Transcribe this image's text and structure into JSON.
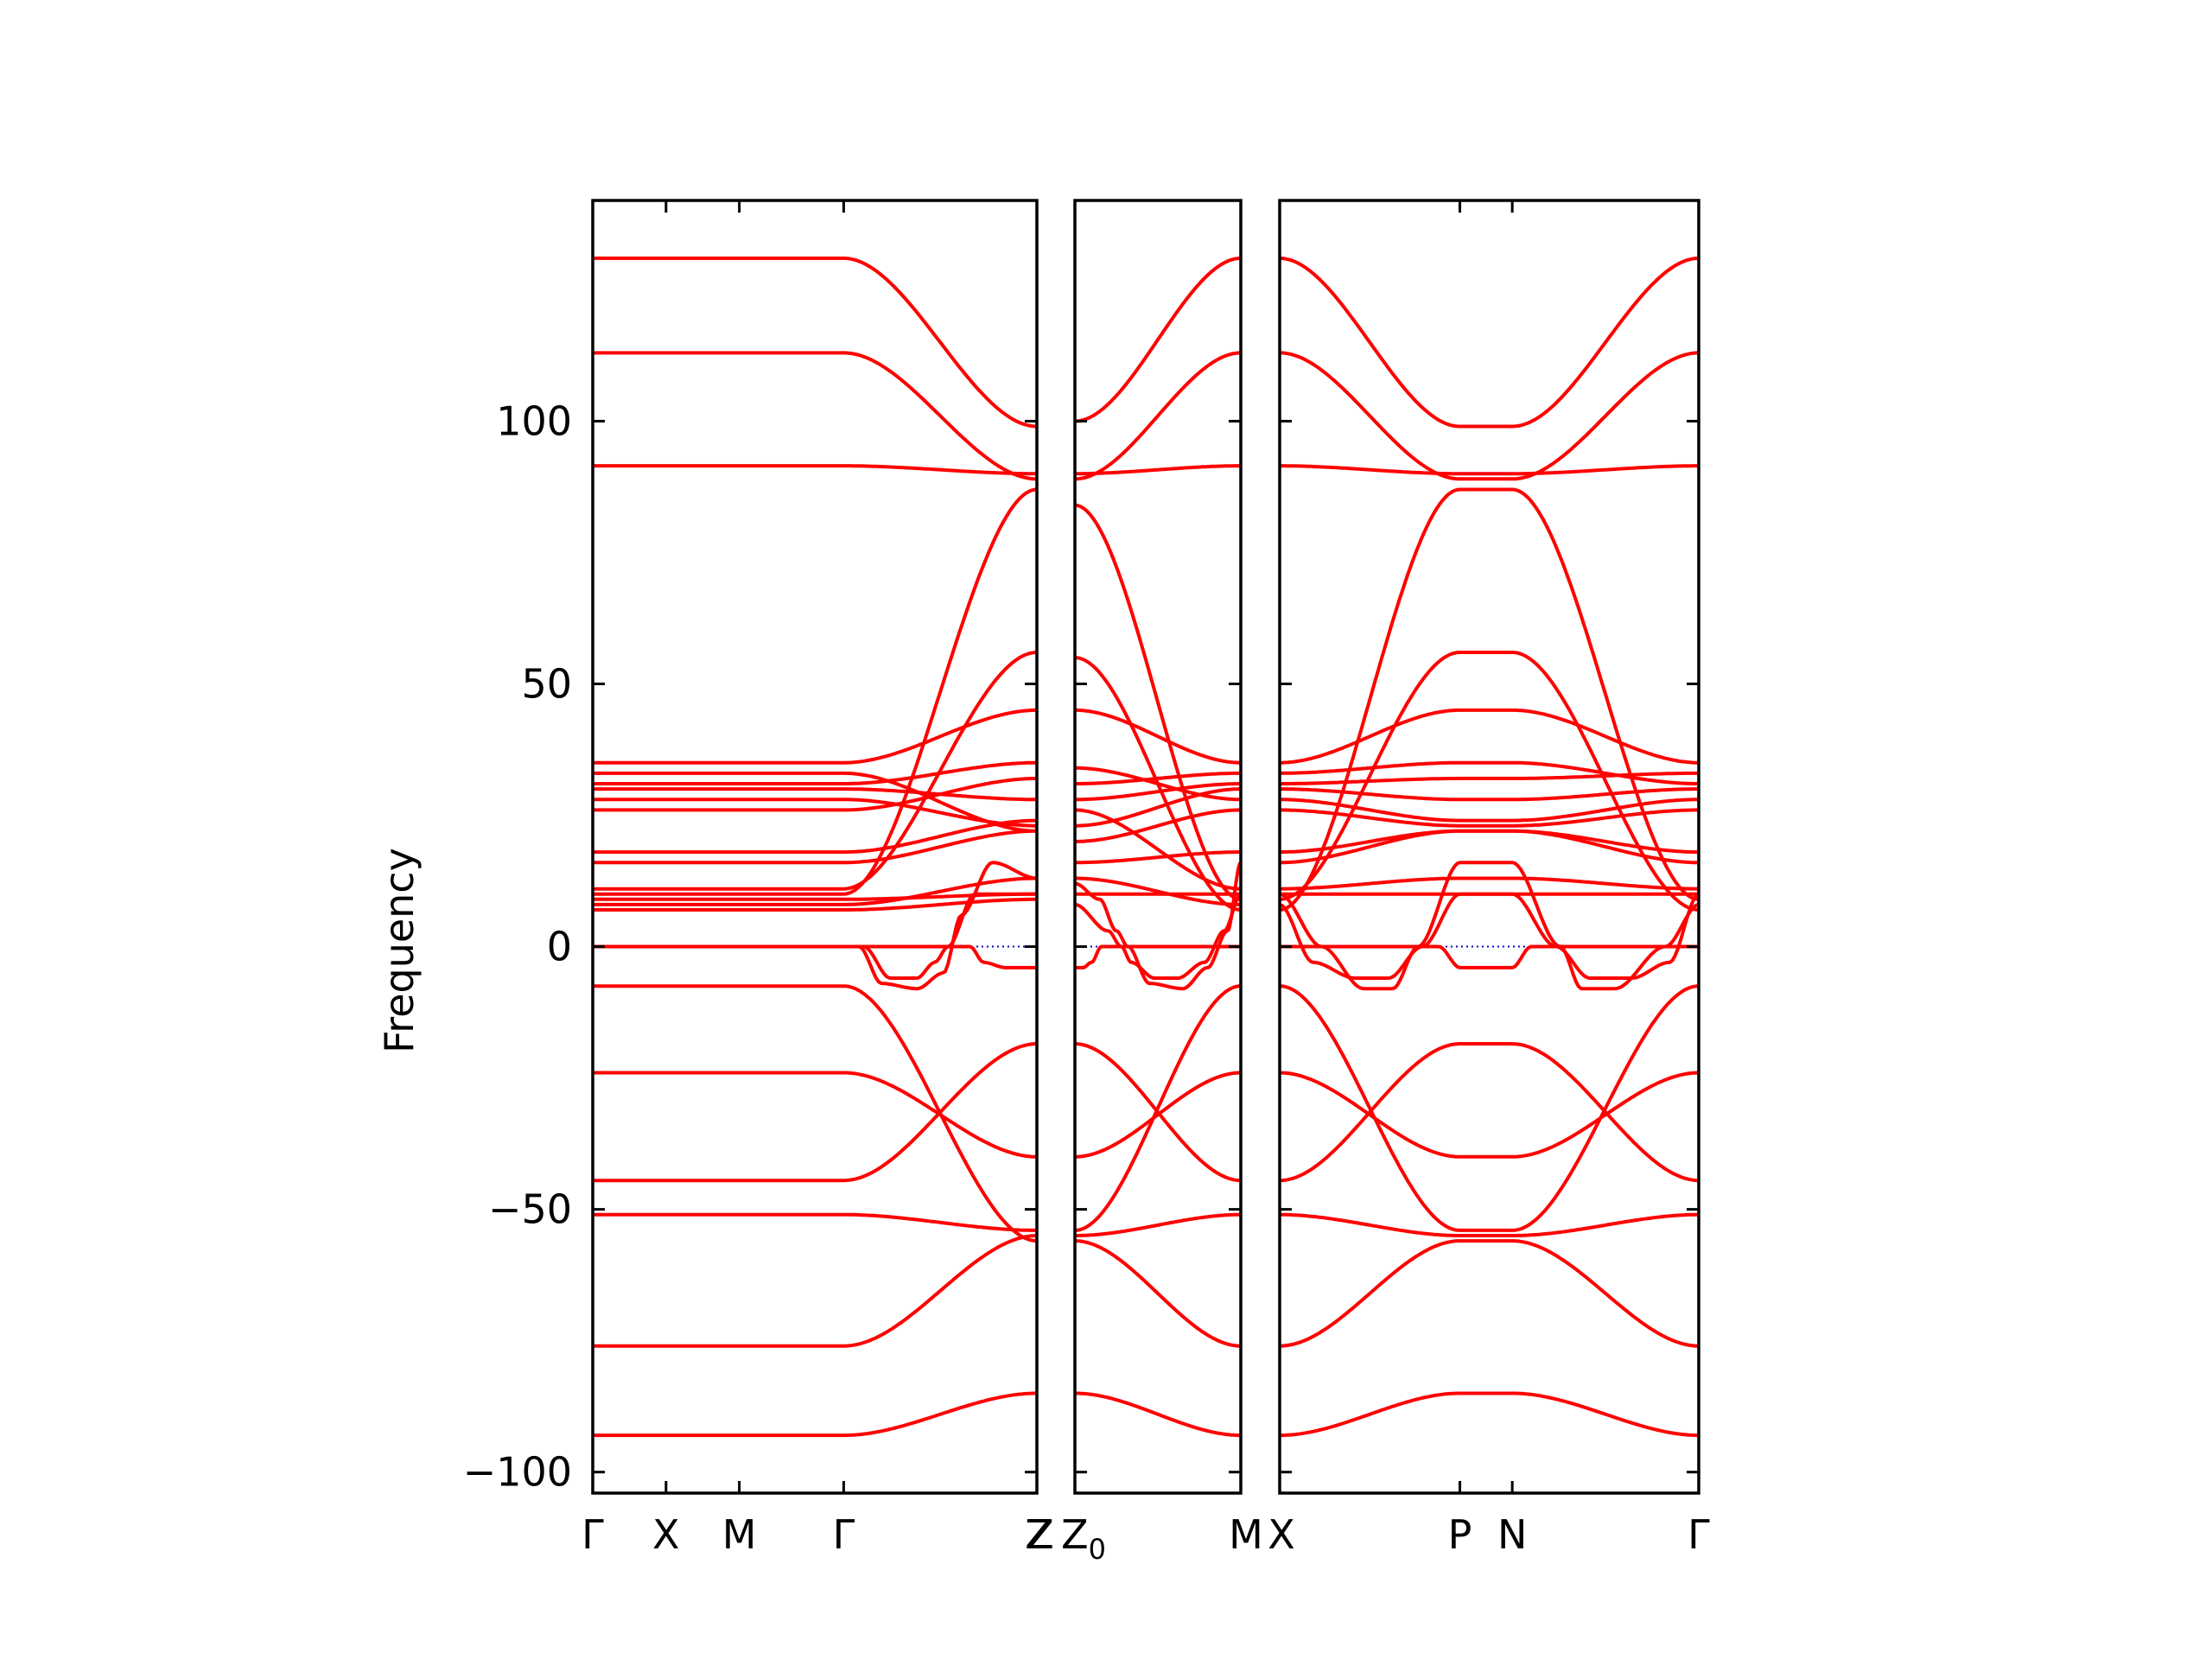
{
  "chart_data": {
    "type": "line",
    "title": "",
    "ylabel": "Frequency",
    "ylim": [
      -104,
      142
    ],
    "y_ticks": [
      {
        "value": 100,
        "label": "100"
      },
      {
        "value": 50,
        "label": "50"
      },
      {
        "value": 0,
        "label": "0"
      },
      {
        "value": -50,
        "label": "−50"
      },
      {
        "value": -100,
        "label": "−100"
      }
    ],
    "grid": false,
    "colors": {
      "bands": "#ff0000",
      "zero_line": "#0000cc",
      "axes": "#000000"
    },
    "panels": [
      {
        "path": [
          {
            "label": "Γ",
            "pos": 0.0
          },
          {
            "label": "X",
            "pos": 0.165
          },
          {
            "label": "M",
            "pos": 0.33
          },
          {
            "label": "Γ",
            "pos": 0.565
          },
          {
            "label": "Z",
            "pos": 1.0
          }
        ],
        "bands": [
          {
            "keys": [
              0,
              0.565,
              1.0
            ],
            "values": [
              131,
              131,
              99
            ]
          },
          {
            "keys": [
              0,
              0.565,
              1.0
            ],
            "values": [
              113,
              113,
              89
            ]
          },
          {
            "keys": [
              0,
              0.565,
              1.0
            ],
            "values": [
              91.5,
              91.5,
              90
            ]
          },
          {
            "keys": [
              0,
              0.565,
              1.0
            ],
            "values": [
              35,
              35,
              45
            ]
          },
          {
            "keys": [
              0,
              0.565,
              1.0
            ],
            "values": [
              33,
              33,
              22
            ]
          },
          {
            "keys": [
              0,
              0.565,
              1.0
            ],
            "values": [
              31,
              31,
              35
            ]
          },
          {
            "keys": [
              0,
              0.565,
              1.0
            ],
            "values": [
              30,
              30,
              28
            ]
          },
          {
            "keys": [
              0,
              0.565,
              1.0
            ],
            "values": [
              28,
              28,
              23
            ]
          },
          {
            "keys": [
              0,
              0.565,
              1.0
            ],
            "values": [
              26,
              26,
              32
            ]
          },
          {
            "keys": [
              0,
              0.565,
              1.0
            ],
            "values": [
              18,
              18,
              24
            ]
          },
          {
            "keys": [
              0,
              0.565,
              1.0
            ],
            "values": [
              16,
              16,
              22
            ]
          },
          {
            "keys": [
              0,
              0.565,
              1.0
            ],
            "values": [
              11,
              11,
              56
            ]
          },
          {
            "keys": [
              0,
              0.565,
              1.0
            ],
            "values": [
              10,
              10,
              87
            ]
          },
          {
            "keys": [
              0,
              0.565,
              1.0
            ],
            "values": [
              9,
              9,
              10
            ]
          },
          {
            "keys": [
              0,
              0.565,
              1.0
            ],
            "values": [
              8,
              8,
              13
            ]
          },
          {
            "keys": [
              0,
              0.565,
              1.0
            ],
            "values": [
              7,
              7,
              9
            ]
          },
          {
            "keys": [
              0,
              0.565,
              0.6,
              0.65,
              0.73,
              0.79,
              0.83,
              0.9,
              1.0
            ],
            "values": [
              0,
              0,
              0,
              -7,
              -8,
              -5,
              6,
              16,
              13
            ]
          },
          {
            "keys": [
              0,
              0.565,
              0.61,
              0.67,
              0.73,
              0.77,
              0.8,
              0.86,
              1.0
            ],
            "values": [
              0,
              0,
              0,
              -6,
              -6,
              -3,
              0,
              10,
              10
            ]
          },
          {
            "keys": [
              0,
              0.565,
              0.85,
              0.88,
              0.93,
              1.0
            ],
            "values": [
              0,
              0,
              0,
              -3,
              -4,
              -4
            ]
          },
          {
            "keys": [
              0,
              0.565,
              1.0
            ],
            "values": [
              -7.5,
              -7.5,
              -56
            ]
          },
          {
            "keys": [
              0,
              0.565,
              1.0
            ],
            "values": [
              -24,
              -24,
              -40
            ]
          },
          {
            "keys": [
              0,
              0.565,
              1.0
            ],
            "values": [
              -44.5,
              -44.5,
              -18.5
            ]
          },
          {
            "keys": [
              0,
              0.565,
              1.0
            ],
            "values": [
              -51,
              -51,
              -54
            ]
          },
          {
            "keys": [
              0,
              0.565,
              1.0
            ],
            "values": [
              -76,
              -76,
              -55
            ]
          },
          {
            "keys": [
              0,
              0.565,
              1.0
            ],
            "values": [
              -93,
              -93,
              -85
            ]
          }
        ]
      },
      {
        "path": [
          {
            "label": "Z",
            "pos": 0.0
          },
          {
            "label": "Z",
            "subscript": "0",
            "pos": 0.0
          },
          {
            "label": "M",
            "pos": 1.0
          }
        ],
        "bands": [
          {
            "keys": [
              0,
              1
            ],
            "values": [
              100,
              131
            ]
          },
          {
            "keys": [
              0,
              1
            ],
            "values": [
              89,
              113
            ]
          },
          {
            "keys": [
              0,
              1
            ],
            "values": [
              90,
              91.5
            ]
          },
          {
            "keys": [
              0,
              1
            ],
            "values": [
              84,
              9
            ]
          },
          {
            "keys": [
              0,
              1
            ],
            "values": [
              55,
              7
            ]
          },
          {
            "keys": [
              0,
              1
            ],
            "values": [
              45,
              35
            ]
          },
          {
            "keys": [
              0,
              1
            ],
            "values": [
              34,
              28
            ]
          },
          {
            "keys": [
              0,
              1
            ],
            "values": [
              31,
              33
            ]
          },
          {
            "keys": [
              0,
              1
            ],
            "values": [
              28,
              31
            ]
          },
          {
            "keys": [
              0,
              1
            ],
            "values": [
              26,
              11
            ]
          },
          {
            "keys": [
              0,
              1
            ],
            "values": [
              23,
              30
            ]
          },
          {
            "keys": [
              0,
              1
            ],
            "values": [
              20,
              26
            ]
          },
          {
            "keys": [
              0,
              1
            ],
            "values": [
              16,
              18
            ]
          },
          {
            "keys": [
              0,
              1
            ],
            "values": [
              13,
              8
            ]
          },
          {
            "keys": [
              0,
              1
            ],
            "values": [
              10,
              10
            ]
          },
          {
            "keys": [
              0,
              0.15,
              0.25,
              0.32,
              0.45,
              0.65,
              0.8,
              0.92,
              1.0
            ],
            "values": [
              12,
              9,
              3,
              0,
              -7,
              -8,
              -4,
              3,
              16
            ]
          },
          {
            "keys": [
              0,
              0.2,
              0.28,
              0.34,
              0.48,
              0.62,
              0.78,
              0.9,
              1.0
            ],
            "values": [
              8,
              3,
              0,
              -3,
              -6,
              -6,
              -3,
              3,
              10
            ]
          },
          {
            "keys": [
              0,
              0.05,
              0.1,
              0.16,
              0.2,
              1.0
            ],
            "values": [
              -4,
              -4,
              -3,
              0,
              0,
              0
            ]
          },
          {
            "keys": [
              0,
              1
            ],
            "values": [
              -18.5,
              -44.5
            ]
          },
          {
            "keys": [
              0,
              1
            ],
            "values": [
              -40,
              -24
            ]
          },
          {
            "keys": [
              0,
              1
            ],
            "values": [
              -54,
              -7.5
            ]
          },
          {
            "keys": [
              0,
              1
            ],
            "values": [
              -55,
              -51
            ]
          },
          {
            "keys": [
              0,
              1
            ],
            "values": [
              -56,
              -76
            ]
          },
          {
            "keys": [
              0,
              1
            ],
            "values": [
              -85,
              -93
            ]
          }
        ]
      },
      {
        "path": [
          {
            "label": "X",
            "pos": 0.0
          },
          {
            "label": "P",
            "pos": 0.43
          },
          {
            "label": "N",
            "pos": 0.555
          },
          {
            "label": "Γ",
            "pos": 1.0
          }
        ],
        "bands": [
          {
            "keys": [
              0,
              0.43,
              0.555,
              1.0
            ],
            "values": [
              131,
              99,
              99,
              131
            ]
          },
          {
            "keys": [
              0,
              0.43,
              0.555,
              1.0
            ],
            "values": [
              113,
              89,
              89,
              113
            ]
          },
          {
            "keys": [
              0,
              0.43,
              0.555,
              1.0
            ],
            "values": [
              91.5,
              90,
              90,
              91.5
            ]
          },
          {
            "keys": [
              0,
              0.43,
              0.555,
              1.0
            ],
            "values": [
              7,
              87,
              87,
              9
            ]
          },
          {
            "keys": [
              0,
              0.43,
              0.555,
              1.0
            ],
            "values": [
              9,
              56,
              56,
              7
            ]
          },
          {
            "keys": [
              0,
              0.43,
              0.555,
              1.0
            ],
            "values": [
              35,
              45,
              45,
              35
            ]
          },
          {
            "keys": [
              0,
              0.43,
              0.555,
              1.0
            ],
            "values": [
              33,
              35,
              35,
              31
            ]
          },
          {
            "keys": [
              0,
              0.43,
              0.555,
              1.0
            ],
            "values": [
              31,
              32,
              32,
              33
            ]
          },
          {
            "keys": [
              0,
              0.43,
              0.555,
              1.0
            ],
            "values": [
              30,
              28,
              28,
              30
            ]
          },
          {
            "keys": [
              0,
              0.43,
              0.555,
              1.0
            ],
            "values": [
              28,
              24,
              24,
              28
            ]
          },
          {
            "keys": [
              0,
              0.43,
              0.555,
              1.0
            ],
            "values": [
              26,
              23,
              23,
              26
            ]
          },
          {
            "keys": [
              0,
              0.43,
              0.555,
              1.0
            ],
            "values": [
              18,
              22,
              22,
              18
            ]
          },
          {
            "keys": [
              0,
              0.43,
              0.555,
              1.0
            ],
            "values": [
              16,
              22,
              22,
              16
            ]
          },
          {
            "keys": [
              0,
              0.43,
              0.555,
              1.0
            ],
            "values": [
              11,
              13,
              13,
              11
            ]
          },
          {
            "keys": [
              0,
              0.43,
              0.555,
              1.0
            ],
            "values": [
              10,
              10,
              10,
              10
            ]
          },
          {
            "keys": [
              0,
              0.1,
              0.2,
              0.27,
              0.33,
              0.43,
              0.555,
              0.67,
              0.72,
              0.8,
              0.92,
              1.0
            ],
            "values": [
              10,
              0,
              -8,
              -8,
              0,
              16,
              16,
              0,
              -8,
              -8,
              0,
              8
            ]
          },
          {
            "keys": [
              0,
              0.08,
              0.18,
              0.26,
              0.34,
              0.43,
              0.555,
              0.66,
              0.74,
              0.84,
              0.93,
              1.0
            ],
            "values": [
              8,
              -3,
              -6,
              -6,
              0,
              10,
              10,
              0,
              -6,
              -6,
              -3,
              10
            ]
          },
          {
            "keys": [
              0,
              0.38,
              0.43,
              0.555,
              0.6,
              1.0
            ],
            "values": [
              0,
              0,
              -4,
              -4,
              0,
              0
            ]
          },
          {
            "keys": [
              0,
              0.43,
              0.555,
              1.0
            ],
            "values": [
              -7.5,
              -54,
              -54,
              -7.5
            ]
          },
          {
            "keys": [
              0,
              0.43,
              0.555,
              1.0
            ],
            "values": [
              -24,
              -40,
              -40,
              -24
            ]
          },
          {
            "keys": [
              0,
              0.43,
              0.555,
              1.0
            ],
            "values": [
              -44.5,
              -18.5,
              -18.5,
              -44.5
            ]
          },
          {
            "keys": [
              0,
              0.43,
              0.555,
              1.0
            ],
            "values": [
              -51,
              -55,
              -55,
              -51
            ]
          },
          {
            "keys": [
              0,
              0.43,
              0.555,
              1.0
            ],
            "values": [
              -76,
              -56,
              -56,
              -76
            ]
          },
          {
            "keys": [
              0,
              0.43,
              0.555,
              1.0
            ],
            "values": [
              -93,
              -85,
              -85,
              -93
            ]
          }
        ]
      }
    ]
  }
}
